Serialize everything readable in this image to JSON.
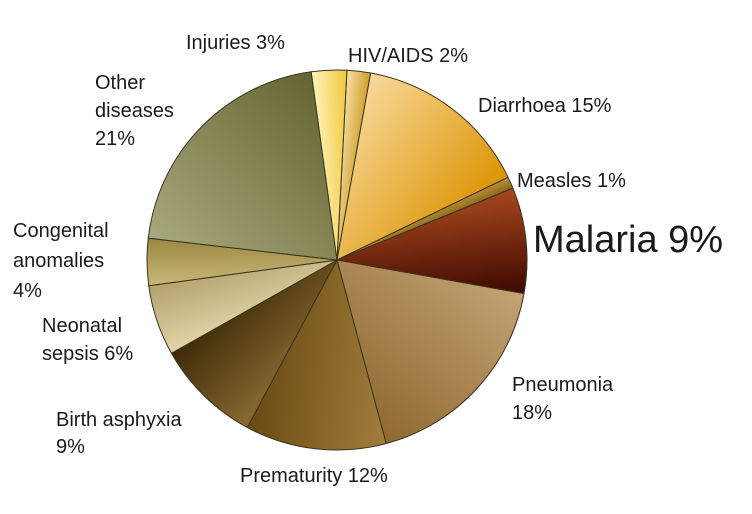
{
  "chart_data": {
    "type": "pie",
    "title": "",
    "start_angle_deg": 3,
    "direction": "clockwise",
    "slices": [
      {
        "name": "HIV/AIDS",
        "value": 2,
        "label": [
          "HIV/AIDS 2%"
        ],
        "colors": [
          "#f7dfa2",
          "#cf9f2e"
        ]
      },
      {
        "name": "Diarrhoea",
        "value": 15,
        "label": [
          "Diarrhoea 15%"
        ],
        "colors": [
          "#f8d99a",
          "#dc9302"
        ]
      },
      {
        "name": "Measles",
        "value": 1,
        "label": [
          "Measles 1%"
        ],
        "colors": [
          "#b8913c",
          "#8a6417"
        ]
      },
      {
        "name": "Malaria",
        "value": 9,
        "label": [
          "Malaria 9%"
        ],
        "colors": [
          "#a8471e",
          "#3c0800"
        ]
      },
      {
        "name": "Pneumonia",
        "value": 18,
        "label": [
          "Pneumonia",
          "18%"
        ],
        "colors": [
          "#c3a375",
          "#8f6930"
        ]
      },
      {
        "name": "Prematurity",
        "value": 12,
        "label": [
          "Prematurity 12%"
        ],
        "colors": [
          "#a27e3c",
          "#6a4a12"
        ]
      },
      {
        "name": "Birth asphyxia",
        "value": 9,
        "label": [
          "Birth asphyxia",
          "9%"
        ],
        "colors": [
          "#8a6b32",
          "#3d2a08"
        ]
      },
      {
        "name": "Neonatal sepsis",
        "value": 6,
        "label": [
          "Neonatal",
          "sepsis 6%"
        ],
        "colors": [
          "#e1d5a9",
          "#b3a16c"
        ]
      },
      {
        "name": "Congenital anomalies",
        "value": 4,
        "label": [
          "Congenital",
          "anomalies",
          "4%"
        ],
        "colors": [
          "#c9b77a",
          "#9a8740"
        ]
      },
      {
        "name": "Other diseases",
        "value": 21,
        "label": [
          "Other",
          "diseases",
          "21%"
        ],
        "colors": [
          "#a8a87e",
          "#646530"
        ]
      },
      {
        "name": "Injuries",
        "value": 3,
        "label": [
          "Injuries 3%"
        ],
        "colors": [
          "#fff4bf",
          "#f1c73a"
        ]
      }
    ]
  }
}
